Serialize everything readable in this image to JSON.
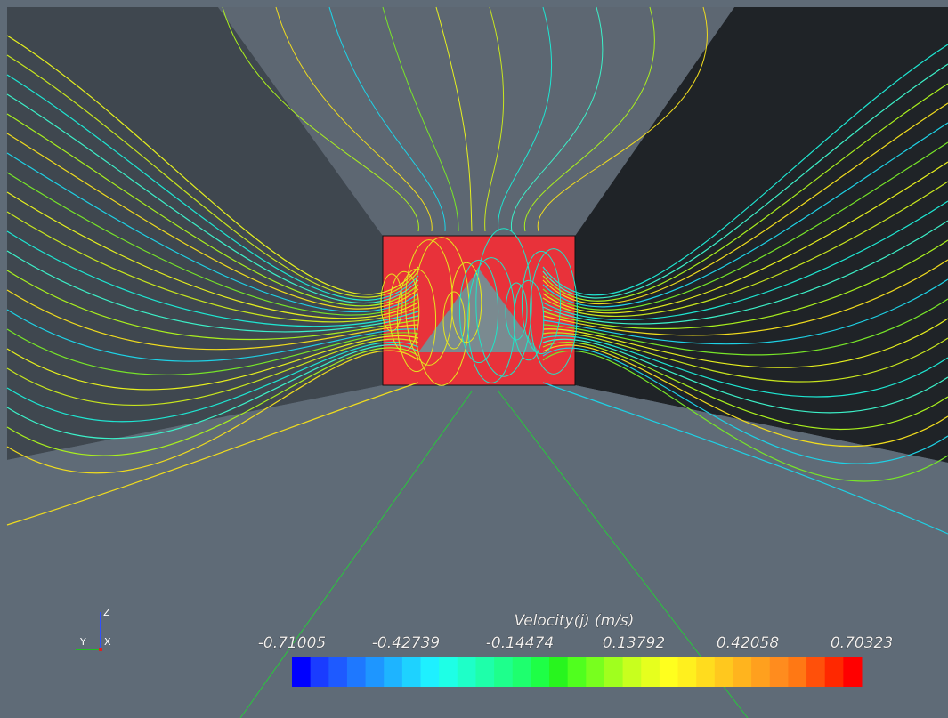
{
  "axes": {
    "z": "Z",
    "y": "Y",
    "x": "X"
  },
  "colorbar": {
    "title": "Velocity(j) (m/s)",
    "ticks": [
      "-0.71005",
      "-0.42739",
      "-0.14474",
      "0.13792",
      "0.42058",
      "0.70323"
    ],
    "colors": [
      "#0000ff",
      "#1a3cff",
      "#1e5aff",
      "#1e78ff",
      "#1e96ff",
      "#1eb4ff",
      "#1ed2ff",
      "#1ef0ff",
      "#1effe6",
      "#1effc8",
      "#1effaa",
      "#1eff8c",
      "#1eff6e",
      "#1eff46",
      "#28f51e",
      "#50ff1e",
      "#78ff1e",
      "#a0ff1e",
      "#c8ff1e",
      "#e6ff1e",
      "#ffff1e",
      "#fff01e",
      "#ffdc1e",
      "#ffc81e",
      "#ffb41e",
      "#ffa01e",
      "#ff8c1e",
      "#ff7814",
      "#ff500a",
      "#ff2800",
      "#ff0000"
    ]
  }
}
